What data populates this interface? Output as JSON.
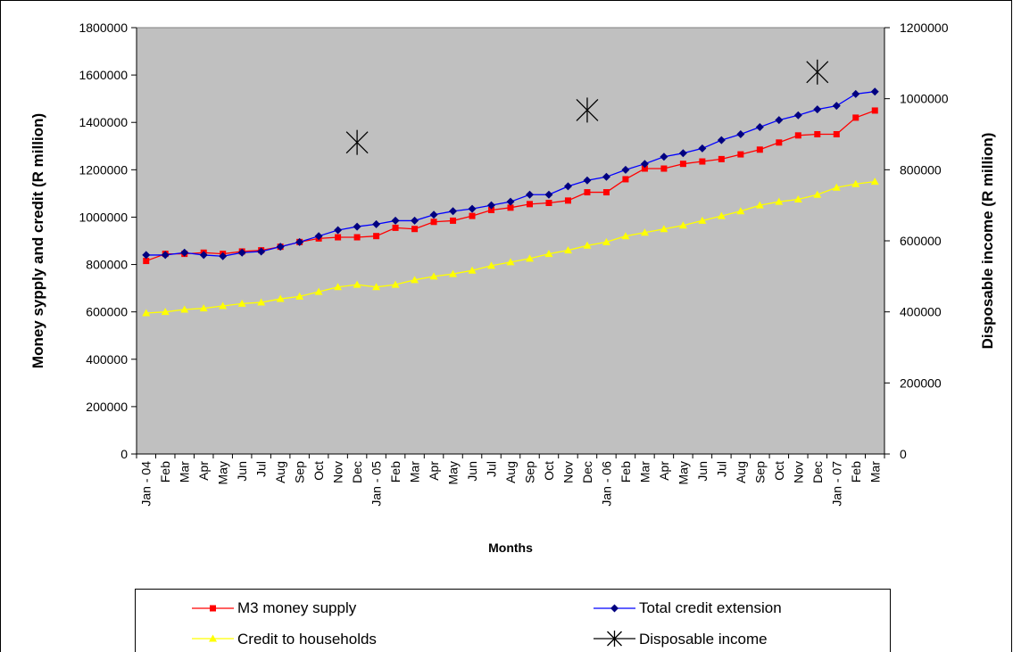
{
  "chart_data": {
    "type": "line",
    "categories": [
      "Jan - 04",
      "Feb",
      "Mar",
      "Apr",
      "May",
      "Jun",
      "Jul",
      "Aug",
      "Sep",
      "Oct",
      "Nov",
      "Dec",
      "Jan - 05",
      "Feb",
      "Mar",
      "Apr",
      "May",
      "Jun",
      "Jul",
      "Aug",
      "Sep",
      "Oct",
      "Nov",
      "Dec",
      "Jan - 06",
      "Feb",
      "Mar",
      "Apr",
      "May",
      "Jun",
      "Jul",
      "Aug",
      "Sep",
      "Oct",
      "Nov",
      "Dec",
      "Jan - 07",
      "Feb",
      "Mar"
    ],
    "xlabel": "Months",
    "ylabel": "Money sypply and credit (R million)",
    "y2label": "Disposable income (R million)",
    "ylim": [
      0,
      1800000
    ],
    "y2lim": [
      0,
      1200000
    ],
    "yticks": [
      "0",
      "200000",
      "400000",
      "600000",
      "800000",
      "1000000",
      "1200000",
      "1400000",
      "1600000",
      "1800000"
    ],
    "y2ticks": [
      "0",
      "200000",
      "400000",
      "600000",
      "800000",
      "1000000",
      "1200000"
    ],
    "grid": false,
    "plot_background": "#c0c0c0",
    "legend_position": "bottom",
    "series": [
      {
        "name": "M3 money supply",
        "axis": "left",
        "color": "#ff0000",
        "line_color": "#ff0000",
        "marker": "square",
        "values": [
          815000,
          845000,
          845000,
          850000,
          845000,
          855000,
          860000,
          875000,
          895000,
          910000,
          915000,
          915000,
          920000,
          955000,
          950000,
          980000,
          985000,
          1005000,
          1030000,
          1040000,
          1055000,
          1060000,
          1070000,
          1105000,
          1105000,
          1160000,
          1205000,
          1205000,
          1225000,
          1235000,
          1245000,
          1265000,
          1285000,
          1315000,
          1345000,
          1350000,
          1350000,
          1420000,
          1450000
        ]
      },
      {
        "name": "Total credit extension",
        "axis": "left",
        "color": "#000080",
        "line_color": "#0000ff",
        "marker": "diamond",
        "values": [
          840000,
          840000,
          850000,
          840000,
          835000,
          850000,
          855000,
          875000,
          895000,
          920000,
          945000,
          960000,
          970000,
          985000,
          985000,
          1010000,
          1025000,
          1035000,
          1050000,
          1065000,
          1095000,
          1095000,
          1130000,
          1155000,
          1170000,
          1200000,
          1225000,
          1255000,
          1270000,
          1290000,
          1325000,
          1350000,
          1380000,
          1410000,
          1430000,
          1455000,
          1470000,
          1520000,
          1530000
        ]
      },
      {
        "name": "Credit to households",
        "axis": "left",
        "color": "#ffff00",
        "line_color": "#ffff00",
        "marker": "triangle",
        "values": [
          595000,
          600000,
          610000,
          615000,
          625000,
          635000,
          640000,
          655000,
          665000,
          685000,
          705000,
          715000,
          705000,
          715000,
          735000,
          750000,
          760000,
          775000,
          795000,
          810000,
          825000,
          845000,
          860000,
          880000,
          895000,
          920000,
          935000,
          950000,
          965000,
          985000,
          1005000,
          1025000,
          1050000,
          1065000,
          1075000,
          1095000,
          1125000,
          1140000,
          1150000
        ]
      },
      {
        "name": "Disposable income",
        "axis": "right",
        "color": "#000000",
        "line_color": "#000000",
        "marker": "asterisk",
        "points": [
          {
            "category_index": 11,
            "value": 877000
          },
          {
            "category_index": 23,
            "value": 968000
          },
          {
            "category_index": 35,
            "value": 1075000
          }
        ]
      }
    ]
  }
}
